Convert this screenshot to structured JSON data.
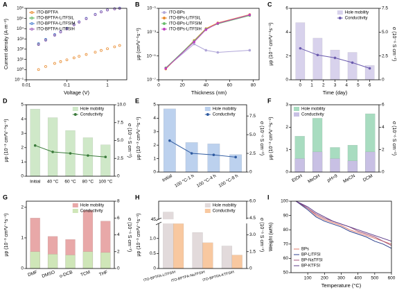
{
  "chart_data": [
    {
      "type": "scatter",
      "label": "A",
      "xlabel": "Voltage (V)",
      "ylabel": "Current density (A·m⁻²)",
      "xlog": true,
      "ylog": true,
      "xlim": [
        0.01,
        3
      ],
      "ylim": [
        0.1,
        1000000
      ],
      "xticks": [
        0.01,
        0.1,
        1
      ],
      "yticks": [
        {
          "value": 0.1,
          "label": "10⁻¹"
        },
        {
          "value": 1,
          "label": "10⁰"
        },
        {
          "value": 10,
          "label": "10¹"
        },
        {
          "value": 100,
          "label": "10²"
        },
        {
          "value": 1000,
          "label": "10³"
        },
        {
          "value": 10000,
          "label": "10⁴"
        },
        {
          "value": 100000,
          "label": "10⁵"
        },
        {
          "value": 1000000,
          "label": "10⁶"
        }
      ],
      "legend": "upper left",
      "x": [
        0.02,
        0.03,
        0.05,
        0.07,
        0.1,
        0.15,
        0.2,
        0.3,
        0.5,
        0.7,
        1,
        1.5,
        2
      ],
      "series": [
        {
          "name": "ITO-BPTFA",
          "color": "#e8892b",
          "values": [
            1,
            2,
            4,
            6,
            9,
            14,
            20,
            30,
            50,
            75,
            110,
            170,
            230
          ]
        },
        {
          "name": "ITO-BPTFA-LiTFSIL",
          "color": "#5ab55a",
          "values": [
            300,
            800,
            2500,
            5000,
            10000,
            25000,
            45000,
            100000,
            250000,
            450000,
            700000,
            900000,
            1000000
          ]
        },
        {
          "name": "ITO-BPTFA-LiTFSIM",
          "color": "#4a7fd0",
          "values": [
            350,
            900,
            2700,
            5200,
            11000,
            26000,
            48000,
            105000,
            260000,
            460000,
            720000,
            920000,
            1050000
          ]
        },
        {
          "name": "ITO-BPTFA-LiTFSIH",
          "color": "#9b59b6",
          "values": [
            280,
            750,
            2300,
            4800,
            9500,
            24000,
            44000,
            96000,
            240000,
            440000,
            680000,
            880000,
            980000
          ]
        }
      ]
    },
    {
      "type": "line",
      "label": "B",
      "xlabel": "Thickness (nm)",
      "ylabel": "μp (cm²V⁻¹s⁻¹)",
      "ylog": true,
      "xlim": [
        0,
        85
      ],
      "ylim": [
        1e-07,
        0.1
      ],
      "xticks": [
        0,
        20,
        40,
        60,
        80
      ],
      "yticks": [
        {
          "value": 1e-07,
          "label": "10⁻⁷"
        },
        {
          "value": 1e-05,
          "label": "10⁻⁵"
        },
        {
          "value": 0.001,
          "label": "10⁻³"
        },
        {
          "value": 0.1,
          "label": "10⁻¹"
        }
      ],
      "legend": "upper left",
      "x": [
        6,
        30,
        40,
        50,
        77
      ],
      "series": [
        {
          "name": "ITO-BPs",
          "color": "#b0a6d8",
          "values": [
            1e-06,
            0.0001,
            3e-05,
            2e-05,
            3e-05
          ]
        },
        {
          "name": "ITO-BPs-LiTFSIL",
          "color": "#e8892b",
          "values": [
            8e-07,
            0.0002,
            0.002,
            0.006,
            0.03
          ]
        },
        {
          "name": "ITO-BPs-LiTFSIM",
          "color": "#66bb6a",
          "values": [
            1e-06,
            0.00018,
            0.0018,
            0.005,
            0.025
          ]
        },
        {
          "name": "ITO-BPs-LiTFSIH",
          "color": "#c040c0",
          "values": [
            9e-07,
            0.00015,
            0.0016,
            0.0055,
            0.028
          ]
        }
      ]
    },
    {
      "type": "bar",
      "label": "C",
      "xlabel": "Time (day)",
      "ylabel": "μp (10⁻³ cm²V⁻¹s⁻¹)",
      "y2label": "σ (10⁻⁶ S cm⁻¹)",
      "xlim": [
        -0.8,
        6.8
      ],
      "ylim": [
        0,
        6
      ],
      "y2lim": [
        0,
        7.5
      ],
      "xticks": [
        0,
        1,
        2,
        3,
        4,
        5,
        6
      ],
      "yticks": [
        0,
        2,
        4,
        6
      ],
      "y2ticks": [
        0,
        2.5,
        {
          "value": 5,
          "label": "5.0"
        },
        7.5
      ],
      "legend": "upper right",
      "bar_mode": "overlay",
      "x": [
        0,
        1.5,
        3,
        4.5,
        6
      ],
      "series": [
        {
          "name": "Hole mobility",
          "color": "#d8d2ec",
          "values": [
            4.8,
            3.5,
            2.5,
            2.3,
            1.2
          ]
        },
        {
          "name": "Conductivity",
          "color": "#6a5aad",
          "type": "line",
          "axis": "y2",
          "values": [
            3.3,
            2.6,
            2.3,
            1.8,
            1.2
          ]
        }
      ]
    },
    {
      "type": "bar",
      "label": "D",
      "ylabel": "μp (10⁻³ cm²V⁻¹s⁻¹)",
      "y2label": "σ (10⁻⁶ S cm⁻¹)",
      "ylim": [
        0,
        5
      ],
      "y2lim": [
        0,
        10
      ],
      "yticks": [
        0,
        1,
        2,
        3,
        4,
        5
      ],
      "y2ticks": [
        0,
        2.5,
        {
          "value": 5,
          "label": "5.0"
        },
        7.5,
        {
          "value": 10,
          "label": "10.0"
        }
      ],
      "legend": "upper right",
      "bar_mode": "overlay",
      "xtick_rotation": 0,
      "categories": [
        "Initial",
        "40 °C",
        "60 °C",
        "80 °C",
        "100 °C"
      ],
      "series": [
        {
          "name": "Hole mobility",
          "color": "#cfe8c8",
          "values": [
            4.7,
            4.1,
            3.2,
            2.7,
            2.2
          ]
        },
        {
          "name": "Conductivity",
          "color": "#3a7a3a",
          "type": "line",
          "axis": "y2",
          "values": [
            4.3,
            3.4,
            3.2,
            2.9,
            2.7
          ]
        }
      ]
    },
    {
      "type": "bar",
      "label": "E",
      "ylabel": "μp (10⁻³ cm²V⁻¹s⁻¹)",
      "y2label": "σ (10⁻⁶ S cm⁻¹)",
      "ylim": [
        0,
        5
      ],
      "y2lim": [
        0,
        9
      ],
      "yticks": [
        0,
        1,
        2,
        3,
        4,
        5
      ],
      "y2ticks": [
        0,
        2.5,
        {
          "value": 5,
          "label": "5.0"
        },
        7.5
      ],
      "legend": "upper right",
      "bar_mode": "overlay",
      "xtick_rotation": 30,
      "categories": [
        "Initial",
        "100 °C-1 h",
        "100 °C-4 h",
        "100 °C-8 h"
      ],
      "series": [
        {
          "name": "Hole mobility",
          "color": "#bcd1ee",
          "values": [
            4.7,
            2.2,
            2.1,
            1.3
          ]
        },
        {
          "name": "Conductivity",
          "color": "#2e5aa0",
          "type": "line",
          "axis": "y2",
          "values": [
            4.2,
            2.5,
            2.3,
            2.0
          ]
        }
      ]
    },
    {
      "type": "bar",
      "label": "F",
      "ylabel": "μp (10⁻³ cm²V⁻¹s⁻¹)",
      "y2label": "σ (10⁻⁶ S cm⁻¹)",
      "ylim": [
        0,
        3
      ],
      "y2lim": [
        0,
        6
      ],
      "yticks": [
        0,
        1,
        2,
        3
      ],
      "y2ticks": [
        0,
        2,
        4,
        6
      ],
      "legend": "upper left",
      "bar_mode": "overlay",
      "xtick_rotation": 30,
      "categories": [
        "EtOH",
        "MeOH",
        "pH=9",
        "MeCN",
        "DCM"
      ],
      "series": [
        {
          "name": "Hole mobility",
          "color": "#a8dcc0",
          "values": [
            1.6,
            2.4,
            1.1,
            1.2,
            2.6
          ]
        },
        {
          "name": "Conductivity",
          "color": "#c8c0e4",
          "axis": "y2",
          "values": [
            1.2,
            1.8,
            1.2,
            1.0,
            1.8
          ]
        }
      ]
    },
    {
      "type": "bar",
      "label": "G",
      "ylabel": "μp (10⁻³ cm²V⁻¹s⁻¹)",
      "y2label": "σ (10⁻⁶ S cm⁻¹)",
      "ylim": [
        0,
        2.2
      ],
      "y2lim": [
        0,
        8
      ],
      "yticks": [
        0,
        1,
        2
      ],
      "y2ticks": [
        0,
        2,
        4,
        6,
        8
      ],
      "legend": "upper right",
      "bar_mode": "overlay",
      "xtick_rotation": 20,
      "categories": [
        "DMF",
        "DMSO",
        "o-DCB",
        "TCM",
        "THF"
      ],
      "series": [
        {
          "name": "Hole mobility",
          "color": "#e8a8a8",
          "values": [
            1.65,
            1.05,
            0.95,
            1.9,
            1.55
          ]
        },
        {
          "name": "Conductivity",
          "color": "#cfe6b8",
          "axis": "y2",
          "values": [
            2.0,
            1.7,
            1.6,
            2.0,
            1.9
          ]
        }
      ]
    },
    {
      "type": "bar",
      "label": "H",
      "ylabel": "μp (10⁻³ cm²V⁻¹s⁻¹)",
      "y2label": "σ (10⁻⁶ S cm⁻¹)",
      "ylim": [
        0,
        50
      ],
      "ybreak": [
        1.5,
        45
      ],
      "y2lim": [
        0,
        6
      ],
      "yticks": [
        0,
        0.5,
        {
          "value": 1,
          "label": "1.0"
        },
        45
      ],
      "y2ticks": [
        0,
        1.5,
        {
          "value": 3,
          "label": "3.0"
        },
        4.5,
        {
          "value": 6,
          "label": "6.0"
        }
      ],
      "legend": "upper right",
      "bar_mode": "grouped",
      "xtick_rotation": 15,
      "categories": [
        "ITO-BPTFA-LiTFSIH",
        "ITO-BPTFA-NaTFSIH",
        "ITO-BPTFA-KTFSIH"
      ],
      "series": [
        {
          "name": "Hole mobility",
          "color": "#e2dadb",
          "values": [
            47,
            1.2,
            0.75
          ]
        },
        {
          "name": "Conductivity",
          "color": "#f8c8a0",
          "axis": "y2",
          "values": [
            4.0,
            2.3,
            1.2
          ]
        }
      ]
    },
    {
      "type": "line",
      "label": "I",
      "xlabel": "Temperature (°C)",
      "ylabel": "Weight (wt%)",
      "xlim": [
        0,
        600
      ],
      "ylim": [
        50,
        100
      ],
      "xticks": [
        100,
        200,
        300,
        400,
        500,
        600
      ],
      "yticks": [
        50,
        60,
        70,
        80,
        90,
        100
      ],
      "legend": "lower left",
      "markers": false,
      "x": [
        30,
        100,
        150,
        200,
        250,
        300,
        350,
        400,
        450,
        500,
        550,
        600
      ],
      "series": [
        {
          "name": "BPs",
          "color": "#e07a6a",
          "values": [
            100,
            95,
            90,
            87,
            85,
            83,
            80,
            78,
            76,
            74,
            72,
            70
          ]
        },
        {
          "name": "BP-LiTFSI",
          "color": "#2b3f8c",
          "values": [
            100,
            94,
            89,
            86,
            84,
            82,
            79,
            77,
            75,
            72,
            70,
            67
          ]
        },
        {
          "name": "BP-NaTFSI",
          "color": "#a05078",
          "values": [
            100,
            95,
            91,
            88,
            86,
            84,
            82,
            79,
            77,
            75,
            72,
            69
          ]
        },
        {
          "name": "BP-KTFSI",
          "color": "#5a3a8a",
          "values": [
            100,
            96,
            92,
            89,
            86,
            84,
            82,
            80,
            78,
            76,
            74,
            72
          ]
        }
      ]
    }
  ]
}
